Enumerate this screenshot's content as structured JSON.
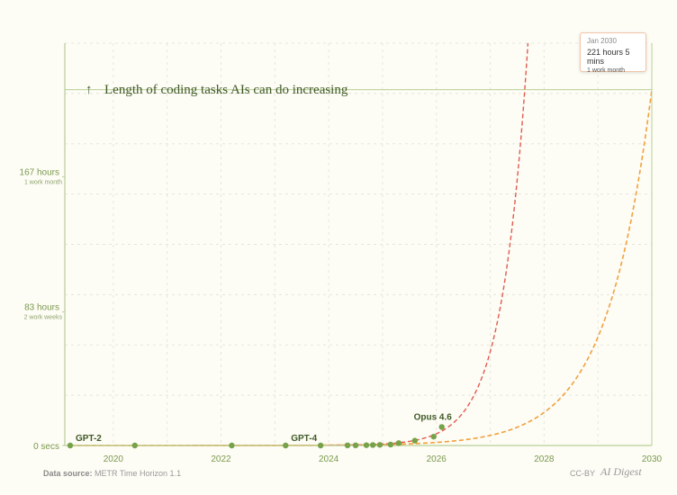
{
  "chart_data": {
    "type": "line",
    "title": "Length of coding tasks AIs can do increasing",
    "title_arrow": "↑",
    "x_ticks": [
      "2020",
      "2022",
      "2024",
      "2026",
      "2028",
      "2030"
    ],
    "x_tick_values": [
      2020,
      2022,
      2024,
      2026,
      2028,
      2030
    ],
    "y_ticks": [
      {
        "value": 0,
        "label": "0 secs",
        "sub": ""
      },
      {
        "value": 83,
        "label": "83 hours",
        "sub": "2 work weeks"
      },
      {
        "value": 167,
        "label": "167 hours",
        "sub": "1 work month"
      }
    ],
    "xlim": [
      2019.1,
      2030
    ],
    "ylim": [
      0,
      250
    ],
    "grid": true,
    "reference_line": {
      "value": 221.1,
      "label": "1 work month"
    },
    "points": [
      {
        "x": 2019.2,
        "y": 0
      },
      {
        "x": 2020.4,
        "y": 0
      },
      {
        "x": 2022.2,
        "y": 0
      },
      {
        "x": 2023.2,
        "y": 0
      },
      {
        "x": 2023.85,
        "y": 0
      },
      {
        "x": 2024.35,
        "y": 0.1
      },
      {
        "x": 2024.5,
        "y": 0.1
      },
      {
        "x": 2024.7,
        "y": 0.2
      },
      {
        "x": 2024.82,
        "y": 0.3
      },
      {
        "x": 2024.95,
        "y": 0.4
      },
      {
        "x": 2025.15,
        "y": 0.6
      },
      {
        "x": 2025.3,
        "y": 1.5
      },
      {
        "x": 2025.6,
        "y": 3
      },
      {
        "x": 2025.95,
        "y": 5.5
      },
      {
        "x": 2026.1,
        "y": 11.5
      }
    ],
    "annotations": [
      {
        "text": "GPT-2",
        "x": 2019.2,
        "y": 0
      },
      {
        "text": "GPT-4",
        "x": 2023.2,
        "y": 0
      },
      {
        "text": "Opus 4.6",
        "x": 2026.1,
        "y": 11.5
      }
    ],
    "trend_fast": {
      "x_start": 2024.0,
      "x_end": 2027.7,
      "doubling_months": 4
    },
    "trend_slow": {
      "x_start": 2019.2,
      "x_end": 2030,
      "doubling_months": 7
    },
    "colors": {
      "axis": "#b8cf98",
      "grid": "#e6e6df",
      "fast_trend": "#e05b4f",
      "slow_trend": "#f2a13c",
      "points": "#76a24a"
    }
  },
  "tooltip": {
    "date": "Jan 2030",
    "value": "221 hours 5 mins",
    "sub": "1 work month"
  },
  "footer": {
    "source_label": "Data source:",
    "source_value": "METR Time Horizon 1.1",
    "license": "CC-BY",
    "logo": "AI Digest"
  }
}
